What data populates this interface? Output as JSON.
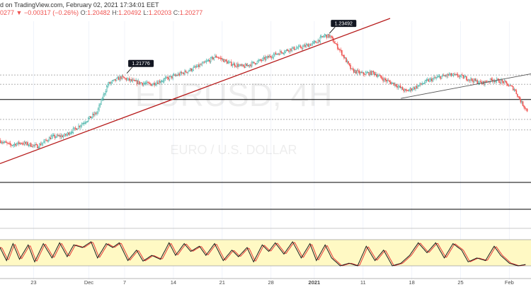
{
  "header": {
    "line1": "d on TradingView.com, February 02, 2021 17:34:01 EET",
    "last_value": "0277",
    "change_arrow": "▼",
    "change": "−0.00317 (−0.26%)",
    "open_label": "O:",
    "open_value": "1.20482",
    "high_label": "H:",
    "high_value": "1.20492",
    "low_label": "L:",
    "low_value": "1.20203",
    "close_label": "C:",
    "close_value": "1.20277"
  },
  "watermark": {
    "symbol": "EURUSD, 4H",
    "subtitle": "EURO / U.S. DOLLAR"
  },
  "colors": {
    "up_candle": "#26a69a",
    "down_candle": "#ef5350",
    "trendline": "#b71c1c",
    "stoch_band": "#fff9c4",
    "stoch_k": "#1a1a1a",
    "stoch_d": "#e53935",
    "horizontal_level": "#000000",
    "dotted_level": "#b0b0b0"
  },
  "chart_data": {
    "type": "candlestick",
    "title": "EURUSD, 4H",
    "subtitle": "EURO / U.S. DOLLAR",
    "x_ticks": [
      "23",
      "Dec",
      "7",
      "14",
      "21",
      "28",
      "2021",
      "11",
      "18",
      "25",
      "Feb"
    ],
    "x_tick_index": [
      31,
      82,
      115,
      160,
      205,
      250,
      290,
      335,
      380,
      425,
      470
    ],
    "ylim": [
      1.176,
      1.241
    ],
    "price_path": [
      [
        0,
        1.19
      ],
      [
        10,
        1.188
      ],
      [
        20,
        1.189
      ],
      [
        35,
        1.1875
      ],
      [
        48,
        1.1915
      ],
      [
        60,
        1.192
      ],
      [
        70,
        1.195
      ],
      [
        80,
        1.1985
      ],
      [
        90,
        1.202
      ],
      [
        100,
        1.214
      ],
      [
        112,
        1.217
      ],
      [
        125,
        1.215
      ],
      [
        140,
        1.214
      ],
      [
        155,
        1.2165
      ],
      [
        170,
        1.219
      ],
      [
        185,
        1.222
      ],
      [
        200,
        1.226
      ],
      [
        212,
        1.223
      ],
      [
        225,
        1.2215
      ],
      [
        240,
        1.224
      ],
      [
        255,
        1.227
      ],
      [
        268,
        1.229
      ],
      [
        280,
        1.23
      ],
      [
        292,
        1.232
      ],
      [
        300,
        1.2349
      ],
      [
        305,
        1.2345
      ],
      [
        315,
        1.228
      ],
      [
        325,
        1.22
      ],
      [
        335,
        1.2185
      ],
      [
        345,
        1.219
      ],
      [
        355,
        1.216
      ],
      [
        365,
        1.214
      ],
      [
        375,
        1.211
      ],
      [
        385,
        1.213
      ],
      [
        395,
        1.2155
      ],
      [
        405,
        1.217
      ],
      [
        415,
        1.218
      ],
      [
        425,
        1.2175
      ],
      [
        435,
        1.216
      ],
      [
        445,
        1.2145
      ],
      [
        455,
        1.216
      ],
      [
        465,
        1.215
      ],
      [
        475,
        1.212
      ],
      [
        482,
        1.206
      ],
      [
        487,
        1.2028
      ]
    ],
    "annotations": [
      {
        "label": "1.21776",
        "index": 117,
        "price": 1.2178
      },
      {
        "label": "1.23492",
        "index": 304,
        "price": 1.2349
      }
    ],
    "trendlines": [
      {
        "name": "rising support",
        "from": [
          0,
          1.1801
        ],
        "to": [
          360,
          1.2422
        ]
      },
      {
        "name": "wedge support",
        "from": [
          370,
          1.208
        ],
        "to": [
          490,
          1.2185
        ]
      }
    ],
    "horizontal_levels": [
      {
        "price": 1.2075,
        "style": "solid"
      },
      {
        "price": 1.218,
        "style": "dotted"
      },
      {
        "price": 1.214,
        "style": "dotted"
      },
      {
        "price": 1.199,
        "style": "dotted"
      },
      {
        "price": 1.1945,
        "style": "dotted"
      }
    ],
    "extra_lines": [
      "solid",
      "solid"
    ],
    "indicator": {
      "type": "stochastic",
      "ylim": [
        0,
        100
      ],
      "band": [
        20,
        80
      ],
      "turning_points": [
        [
          0,
          70
        ],
        [
          6,
          20
        ],
        [
          12,
          85
        ],
        [
          18,
          25
        ],
        [
          26,
          80
        ],
        [
          32,
          15
        ],
        [
          40,
          85
        ],
        [
          48,
          30
        ],
        [
          55,
          88
        ],
        [
          62,
          35
        ],
        [
          68,
          80
        ],
        [
          76,
          70
        ],
        [
          84,
          92
        ],
        [
          90,
          30
        ],
        [
          98,
          85
        ],
        [
          104,
          70
        ],
        [
          110,
          88
        ],
        [
          118,
          20
        ],
        [
          126,
          60
        ],
        [
          132,
          18
        ],
        [
          140,
          40
        ],
        [
          148,
          25
        ],
        [
          156,
          88
        ],
        [
          162,
          40
        ],
        [
          170,
          85
        ],
        [
          176,
          55
        ],
        [
          184,
          75
        ],
        [
          190,
          40
        ],
        [
          198,
          85
        ],
        [
          206,
          20
        ],
        [
          214,
          60
        ],
        [
          220,
          35
        ],
        [
          228,
          70
        ],
        [
          234,
          15
        ],
        [
          242,
          80
        ],
        [
          248,
          55
        ],
        [
          254,
          88
        ],
        [
          262,
          45
        ],
        [
          270,
          92
        ],
        [
          278,
          30
        ],
        [
          286,
          85
        ],
        [
          292,
          20
        ],
        [
          300,
          80
        ],
        [
          306,
          30
        ],
        [
          314,
          0
        ],
        [
          322,
          10
        ],
        [
          330,
          0
        ],
        [
          338,
          75
        ],
        [
          346,
          20
        ],
        [
          354,
          60
        ],
        [
          362,
          0
        ],
        [
          370,
          10
        ],
        [
          378,
          40
        ],
        [
          386,
          88
        ],
        [
          394,
          50
        ],
        [
          402,
          88
        ],
        [
          410,
          30
        ],
        [
          418,
          85
        ],
        [
          426,
          60
        ],
        [
          432,
          15
        ],
        [
          440,
          30
        ],
        [
          448,
          20
        ],
        [
          456,
          75
        ],
        [
          462,
          40
        ],
        [
          470,
          10
        ],
        [
          478,
          0
        ],
        [
          485,
          5
        ]
      ]
    }
  }
}
